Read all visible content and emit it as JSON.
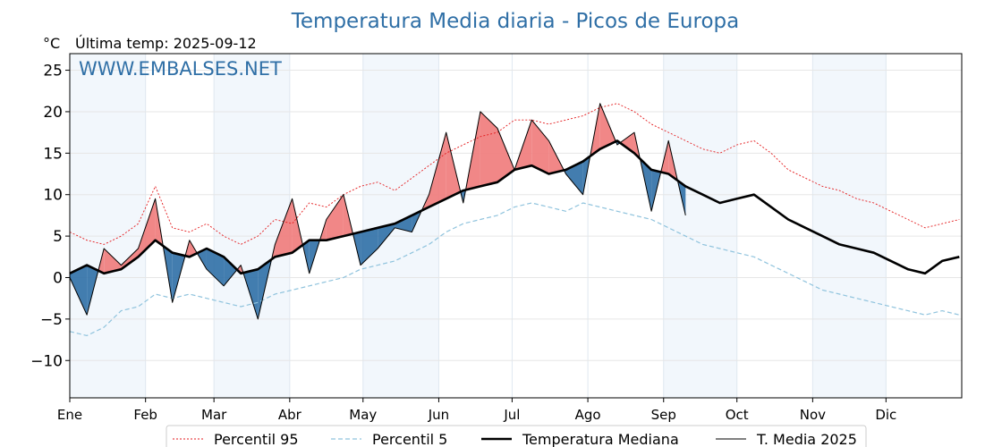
{
  "chart_data": {
    "type": "line",
    "title": "Temperatura Media diaria - Picos de Europa",
    "unit_label": "°C",
    "subtitle": "Última temp: 2025-09-12",
    "watermark": "WWW.EMBALSES.NET",
    "ylim": [
      -14.5,
      27
    ],
    "yticks": [
      25,
      20,
      15,
      10,
      5,
      0,
      -5,
      -10
    ],
    "ytick_labels": [
      "25",
      "20",
      "15",
      "10",
      "5",
      "0",
      "−5",
      "−10"
    ],
    "xlim": [
      1,
      366
    ],
    "months": [
      {
        "label": "Ene",
        "start": 1,
        "end": 32
      },
      {
        "label": "Feb",
        "start": 32,
        "end": 60
      },
      {
        "label": "Mar",
        "start": 60,
        "end": 91
      },
      {
        "label": "Abr",
        "start": 91,
        "end": 121
      },
      {
        "label": "May",
        "start": 121,
        "end": 152
      },
      {
        "label": "Jun",
        "start": 152,
        "end": 182
      },
      {
        "label": "Jul",
        "start": 182,
        "end": 213
      },
      {
        "label": "Ago",
        "start": 213,
        "end": 244
      },
      {
        "label": "Sep",
        "start": 244,
        "end": 274
      },
      {
        "label": "Oct",
        "start": 274,
        "end": 305
      },
      {
        "label": "Nov",
        "start": 305,
        "end": 335
      },
      {
        "label": "Dic",
        "start": 335,
        "end": 366
      }
    ],
    "shaded_months": [
      "Ene",
      "Mar",
      "May",
      "Sep",
      "Nov"
    ],
    "grid": true,
    "legend_position": "bottom",
    "x": [
      1,
      8,
      15,
      22,
      29,
      36,
      43,
      50,
      57,
      64,
      71,
      78,
      85,
      92,
      99,
      106,
      113,
      120,
      127,
      134,
      141,
      148,
      155,
      162,
      169,
      176,
      183,
      190,
      197,
      204,
      211,
      218,
      225,
      232,
      239,
      246,
      253,
      260,
      267,
      274,
      281,
      288,
      295,
      302,
      309,
      316,
      323,
      330,
      337,
      344,
      351,
      358,
      365
    ],
    "series": [
      {
        "name": "Percentil 95",
        "color": "#e41a1c",
        "style": "dotted",
        "values": [
          5.5,
          4.5,
          4.0,
          5.0,
          6.5,
          11.0,
          6.0,
          5.5,
          6.5,
          5.0,
          4.0,
          5.0,
          7.0,
          6.5,
          9.0,
          8.5,
          10.0,
          11.0,
          11.5,
          10.5,
          12.0,
          13.5,
          15.0,
          16.0,
          17.0,
          17.5,
          19.0,
          19.0,
          18.5,
          19.0,
          19.5,
          20.5,
          21.0,
          20.0,
          18.5,
          17.5,
          16.5,
          15.5,
          15.0,
          16.0,
          16.5,
          15.0,
          13.0,
          12.0,
          11.0,
          10.5,
          9.5,
          9.0,
          8.0,
          7.0,
          6.0,
          6.5,
          7.0
        ]
      },
      {
        "name": "Percentil 5",
        "color": "#8fc3dd",
        "style": "dashed",
        "values": [
          -6.5,
          -7.0,
          -6.0,
          -4.0,
          -3.5,
          -2.0,
          -2.5,
          -2.0,
          -2.5,
          -3.0,
          -3.5,
          -3.0,
          -2.0,
          -1.5,
          -1.0,
          -0.5,
          0.0,
          1.0,
          1.5,
          2.0,
          3.0,
          4.0,
          5.5,
          6.5,
          7.0,
          7.5,
          8.5,
          9.0,
          8.5,
          8.0,
          9.0,
          8.5,
          8.0,
          7.5,
          7.0,
          6.0,
          5.0,
          4.0,
          3.5,
          3.0,
          2.5,
          1.5,
          0.5,
          -0.5,
          -1.5,
          -2.0,
          -2.5,
          -3.0,
          -3.5,
          -4.0,
          -4.5,
          -4.0,
          -4.5
        ]
      },
      {
        "name": "Temperatura Mediana",
        "color": "#000000",
        "style": "solid-thick",
        "values": [
          0.5,
          1.5,
          0.5,
          1.0,
          2.5,
          4.5,
          3.0,
          2.5,
          3.5,
          2.5,
          0.5,
          1.0,
          2.5,
          3.0,
          4.5,
          4.5,
          5.0,
          5.5,
          6.0,
          6.5,
          7.5,
          8.5,
          9.5,
          10.5,
          11.0,
          11.5,
          13.0,
          13.5,
          12.5,
          13.0,
          14.0,
          15.5,
          16.5,
          15.0,
          13.0,
          12.5,
          11.0,
          10.0,
          9.0,
          9.5,
          10.0,
          8.5,
          7.0,
          6.0,
          5.0,
          4.0,
          3.5,
          3.0,
          2.0,
          1.0,
          0.5,
          2.0,
          2.5
        ]
      },
      {
        "name": "T. Media 2025",
        "color": "#000000",
        "style": "solid-thin",
        "values": [
          0.0,
          -4.5,
          3.5,
          1.5,
          3.5,
          9.5,
          -3.0,
          4.5,
          1.0,
          -1.0,
          1.5,
          -5.0,
          4.0,
          9.5,
          0.5,
          7.0,
          10.0,
          1.5,
          3.5,
          6.0,
          5.5,
          10.0,
          17.5,
          9.0,
          20.0,
          18.0,
          13.0,
          19.0,
          16.5,
          12.5,
          10.0,
          21.0,
          16.0,
          17.5,
          8.0,
          16.5,
          7.5,
          null,
          null,
          null,
          null,
          null,
          null,
          null,
          null,
          null,
          null,
          null,
          null,
          null,
          null,
          null,
          null
        ]
      }
    ]
  }
}
